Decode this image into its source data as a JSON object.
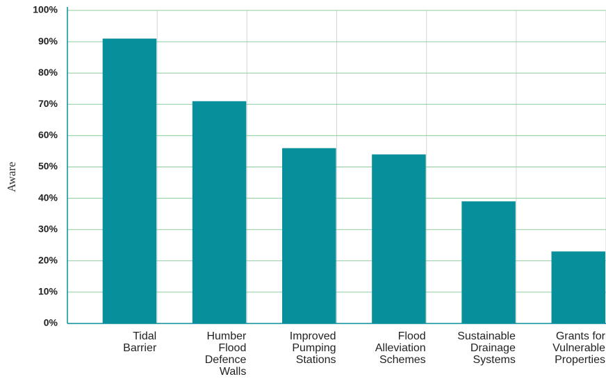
{
  "chart_data": {
    "type": "bar",
    "y_label": "Aware",
    "categories": [
      "Tidal Barrier",
      "Humber Flood Defence Walls",
      "Improved Pumping Stations",
      "Flood Alleviation Schemes",
      "Sustainable Drainage Systems",
      "Grants for Vulnerable Properties"
    ],
    "values": [
      91,
      71,
      56,
      54,
      39,
      23
    ],
    "color": "#078f9b",
    "ylim": [
      0,
      100
    ],
    "yticks": [
      {
        "value": 0,
        "label": "0%"
      },
      {
        "value": 10,
        "label": "10%"
      },
      {
        "value": 20,
        "label": "20%"
      },
      {
        "value": 30,
        "label": "30%"
      },
      {
        "value": 40,
        "label": "40%"
      },
      {
        "value": 50,
        "label": "50%"
      },
      {
        "value": 60,
        "label": "60%"
      },
      {
        "value": 70,
        "label": "70%"
      },
      {
        "value": 80,
        "label": "80%"
      },
      {
        "value": 90,
        "label": "90%"
      },
      {
        "value": 100,
        "label": "100%"
      }
    ],
    "grid": true
  }
}
